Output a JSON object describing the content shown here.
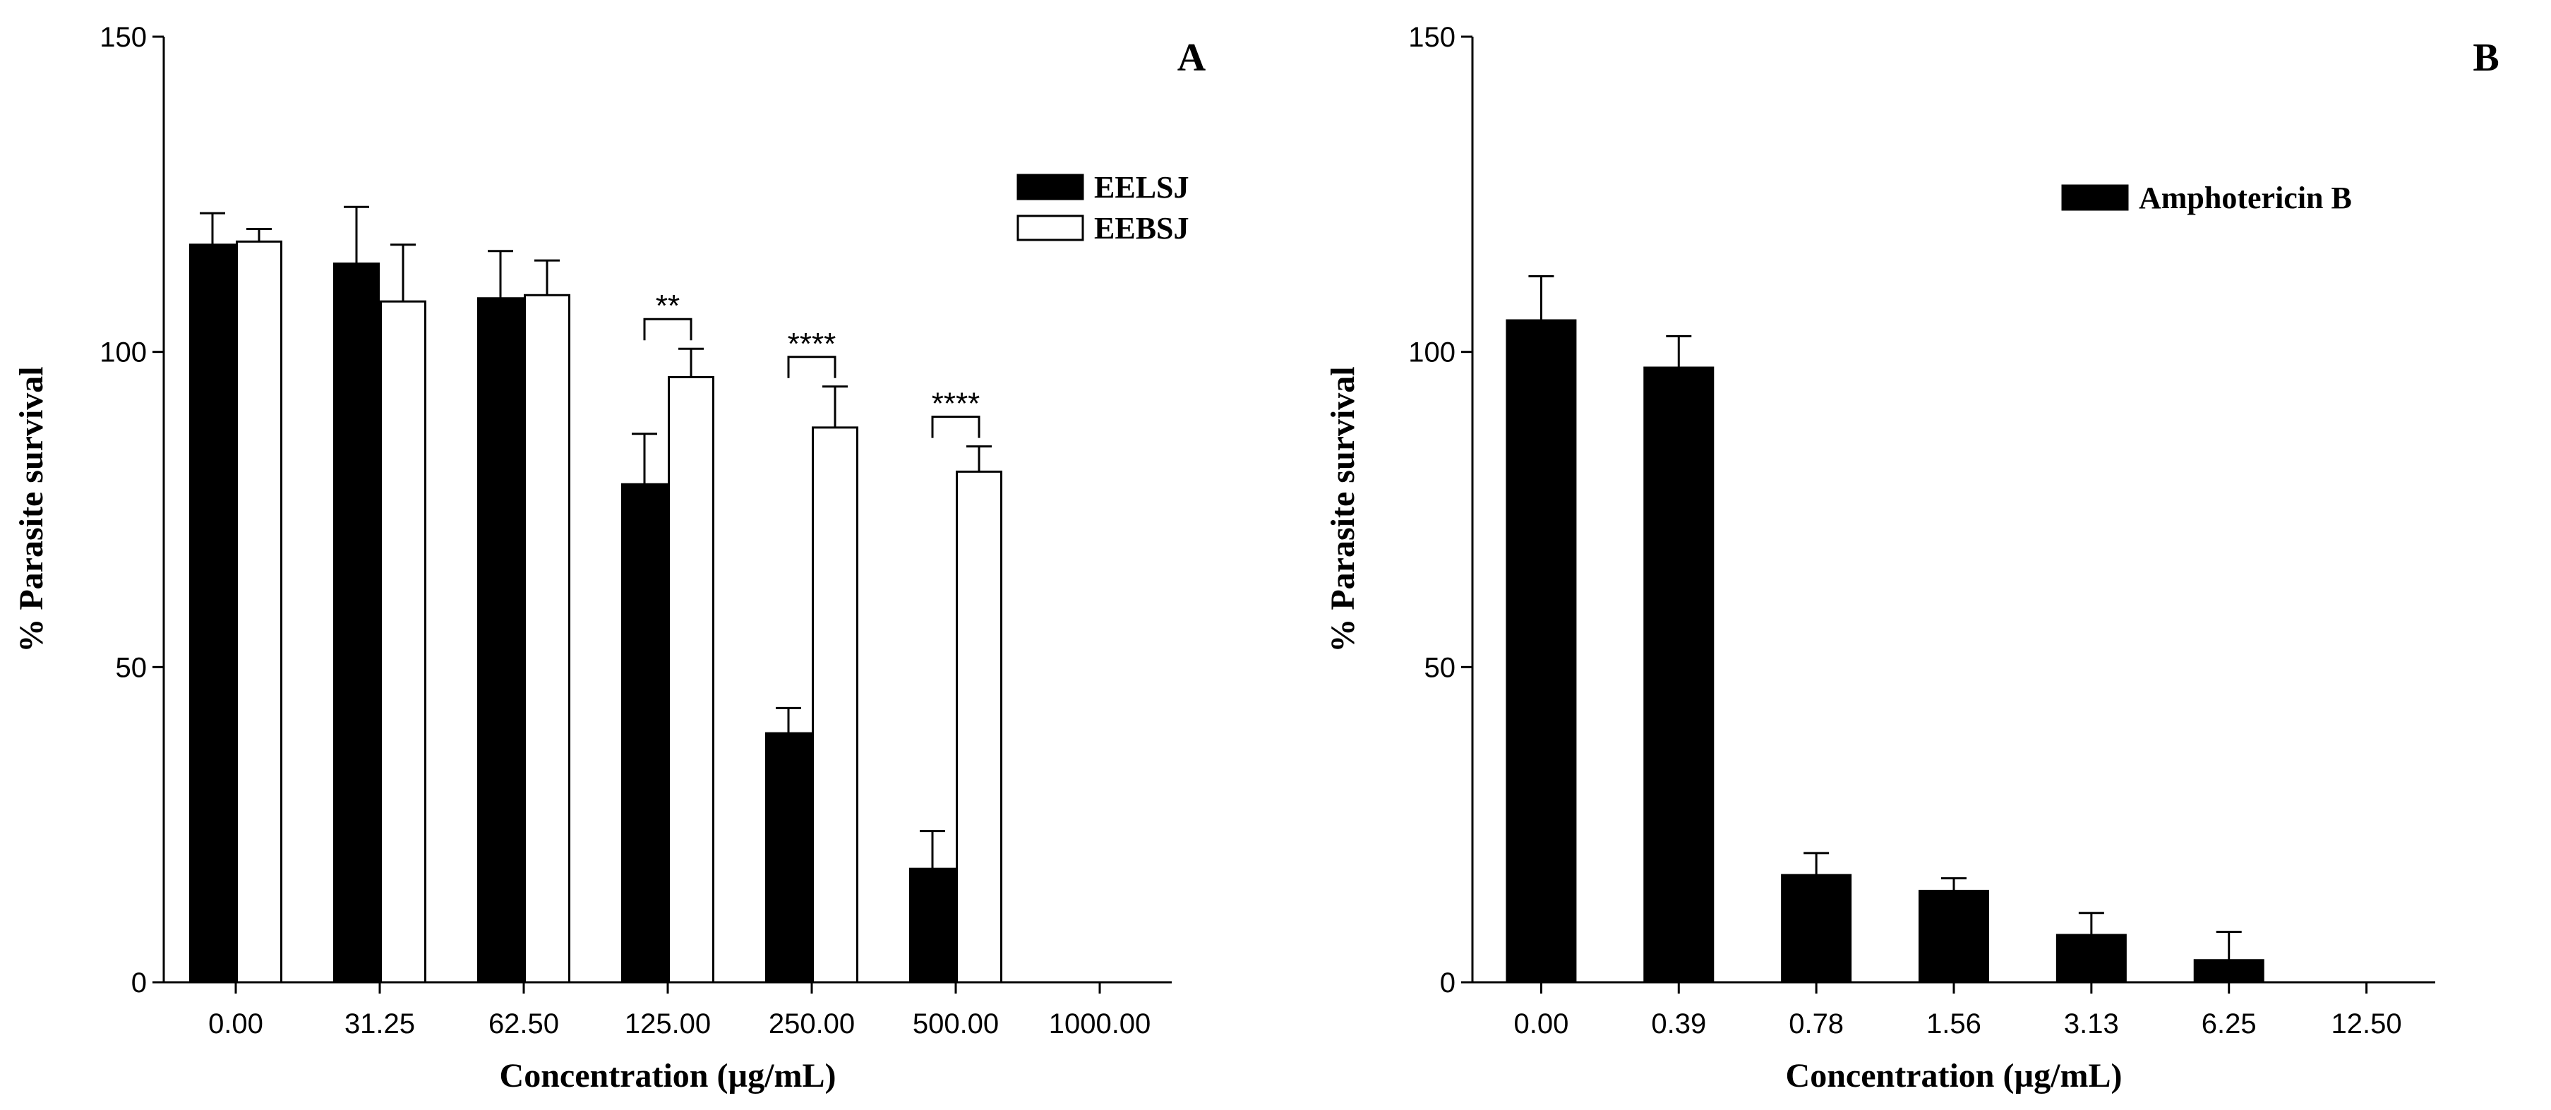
{
  "colors": {
    "filled": "#000000",
    "open": "#ffffff",
    "axis": "#000000"
  },
  "chart_data": [
    {
      "type": "bar",
      "panel_label": "A",
      "xlabel": "Concentration (µg/mL)",
      "ylabel": "% Parasite survival",
      "ylim": [
        0,
        150
      ],
      "yticks": [
        0,
        50,
        100,
        150
      ],
      "legend_position": "top-right",
      "categories": [
        "0.00",
        "31.25",
        "62.50",
        "125.00",
        "250.00",
        "500.00",
        "1000.00"
      ],
      "series": [
        {
          "name": "EELSJ",
          "fill": "filled",
          "values": [
            117,
            114,
            108.5,
            79,
            39.5,
            18,
            null
          ],
          "errors": [
            5,
            9,
            7.5,
            8,
            4,
            6,
            null
          ]
        },
        {
          "name": "EEBSJ",
          "fill": "open",
          "values": [
            117.5,
            108,
            109,
            96,
            88,
            81,
            null
          ],
          "errors": [
            2,
            9,
            5.5,
            4.5,
            6.5,
            4,
            null
          ]
        }
      ],
      "significance": [
        {
          "category_index": 3,
          "label": "**"
        },
        {
          "category_index": 4,
          "label": "****"
        },
        {
          "category_index": 5,
          "label": "****"
        }
      ]
    },
    {
      "type": "bar",
      "panel_label": "B",
      "xlabel": "Concentration (µg/mL)",
      "ylabel": "% Parasite survival",
      "ylim": [
        0,
        150
      ],
      "yticks": [
        0,
        50,
        100,
        150
      ],
      "legend_position": "top-right",
      "categories": [
        "0.00",
        "0.39",
        "0.78",
        "1.56",
        "3.13",
        "6.25",
        "12.50"
      ],
      "series": [
        {
          "name": "Amphotericin B",
          "fill": "filled",
          "values": [
            105,
            97.5,
            17,
            14.5,
            7.5,
            3.5,
            null
          ],
          "errors": [
            7,
            5,
            3.5,
            2,
            3.5,
            4.5,
            null
          ]
        }
      ],
      "significance": []
    }
  ]
}
